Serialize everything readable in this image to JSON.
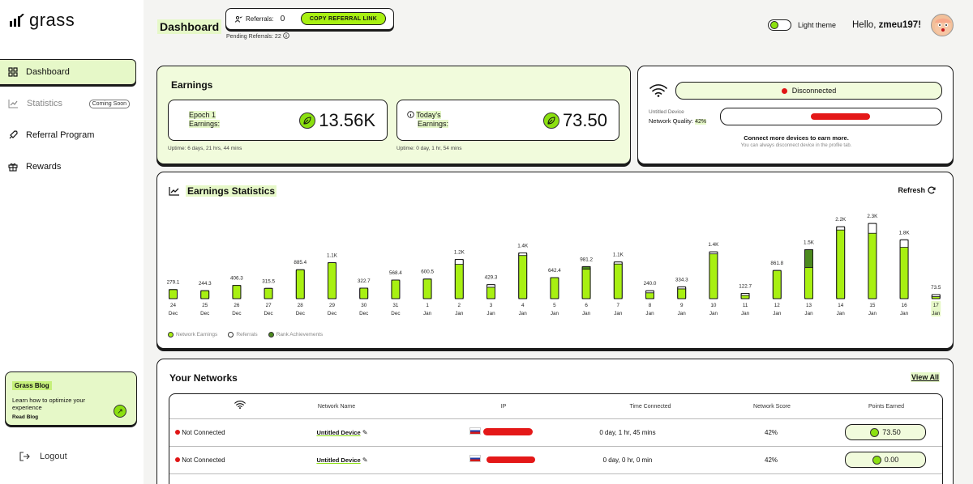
{
  "app": {
    "logo_text": "grass"
  },
  "sidebar": {
    "items": [
      {
        "label": "Dashboard",
        "icon": "grid-icon"
      },
      {
        "label": "Statistics",
        "icon": "chart-icon",
        "badge": "Coming Soon"
      },
      {
        "label": "Referral Program",
        "icon": "rocket-icon"
      },
      {
        "label": "Rewards",
        "icon": "gift-icon"
      }
    ],
    "blog": {
      "title": "Grass Blog",
      "desc": "Learn how to optimize your experience",
      "link": "Read Blog"
    },
    "logout": "Logout"
  },
  "header": {
    "title": "Dashboard",
    "referrals_label": "Referrals:",
    "referrals_count": "0",
    "copy_button": "COPY REFERRAL LINK",
    "pending": "Pending Referrals: 22",
    "theme_label": "Light theme",
    "hello_prefix": "Hello, ",
    "username": "zmeu197!"
  },
  "earnings": {
    "title": "Earnings",
    "epoch": {
      "label_line1": "Epoch 1",
      "label_line2": "Earnings:",
      "value": "13.56K",
      "uptime": "Uptime: 6 days, 21 hrs, 44 mins"
    },
    "today": {
      "label_line1": "Today's",
      "label_line2": "Earnings:",
      "value": "73.50",
      "uptime": "Uptime: 0 day, 1 hr, 54 mins"
    }
  },
  "connection": {
    "status": "Disconnected",
    "device_name": "Untitled Device",
    "quality_label": "Network Quality:",
    "quality_value": "42%",
    "message": "Connect more devices to earn more.",
    "sub_message": "You can always disconnect device in the profile tab."
  },
  "stats": {
    "title": "Earnings Statistics",
    "refresh": "Refresh",
    "legend": [
      "Network Earnings",
      "Referrals",
      "Rank Achievements"
    ]
  },
  "chart_data": {
    "type": "bar",
    "title": "Earnings Statistics",
    "categories": [
      "24 Dec",
      "25 Dec",
      "26 Dec",
      "27 Dec",
      "28 Dec",
      "29 Dec",
      "30 Dec",
      "31 Dec",
      "1 Jan",
      "2 Jan",
      "3 Jan",
      "4 Jan",
      "5 Jan",
      "6 Jan",
      "7 Jan",
      "8 Jan",
      "9 Jan",
      "10 Jan",
      "11 Jan",
      "12 Jan",
      "13 Jan",
      "14 Jan",
      "15 Jan",
      "16 Jan",
      "17 Jan"
    ],
    "day": [
      "24",
      "25",
      "26",
      "27",
      "28",
      "29",
      "30",
      "31",
      "1",
      "2",
      "3",
      "4",
      "5",
      "6",
      "7",
      "8",
      "9",
      "10",
      "11",
      "12",
      "13",
      "14",
      "15",
      "16",
      "17"
    ],
    "month": [
      "Dec",
      "Dec",
      "Dec",
      "Dec",
      "Dec",
      "Dec",
      "Dec",
      "Dec",
      "Jan",
      "Jan",
      "Jan",
      "Jan",
      "Jan",
      "Jan",
      "Jan",
      "Jan",
      "Jan",
      "Jan",
      "Jan",
      "Jan",
      "Jan",
      "Jan",
      "Jan",
      "Jan",
      "Jan"
    ],
    "labels": [
      "279.1",
      "244.3",
      "406.3",
      "315.5",
      "885.4",
      "1.1K",
      "322.7",
      "568.4",
      "600.5",
      "1.2K",
      "429.3",
      "1.4K",
      "642.4",
      "981.2",
      "1.1K",
      "240.0",
      "334.3",
      "1.4K",
      "122.7",
      "861.8",
      "1.5K",
      "2.2K",
      "2.3K",
      "1.8K",
      "73.5"
    ],
    "series": [
      {
        "name": "Network Earnings",
        "values": [
          279.1,
          244.3,
          406.3,
          315.5,
          885.4,
          1100,
          322.7,
          568.4,
          600.5,
          1050,
          350,
          1320,
          642.4,
          900,
          1060,
          180,
          300,
          1370,
          100,
          861.8,
          950,
          2100,
          2000,
          1570,
          30
        ]
      },
      {
        "name": "Referrals",
        "values": [
          0,
          0,
          0,
          0,
          0,
          0,
          0,
          0,
          0,
          150,
          79.3,
          80,
          0,
          0,
          40,
          60,
          34.3,
          30,
          22.7,
          0,
          0,
          100,
          300,
          230,
          43.5
        ]
      },
      {
        "name": "Rank Achievements",
        "values": [
          0,
          0,
          0,
          0,
          0,
          0,
          0,
          0,
          0,
          0,
          0,
          0,
          0,
          81.2,
          0,
          0,
          0,
          0,
          0,
          0,
          550,
          0,
          0,
          0,
          0
        ]
      }
    ],
    "ylim": [
      0,
      2400
    ],
    "xlabel": "",
    "ylabel": "",
    "highlighted_category": "17 Jan"
  },
  "networks": {
    "title": "Your Networks",
    "view_all": "View All",
    "headers": [
      "",
      "Network Name",
      "IP",
      "Time Connected",
      "Network Score",
      "Points Earned"
    ],
    "rows": [
      {
        "status": "Not Connected",
        "name": "Untitled Device",
        "time": "0 day, 1 hr, 45 mins",
        "score": "42%",
        "points": "73.50"
      },
      {
        "status": "Not Connected",
        "name": "Untitled Device",
        "time": "0 day, 0 hr, 0 min",
        "score": "42%",
        "points": "0.00"
      }
    ]
  },
  "colors": {
    "accent": "#a8f012",
    "accent_light": "#e6f8c8",
    "rank": "#4c8a1e",
    "danger": "#e01515"
  }
}
